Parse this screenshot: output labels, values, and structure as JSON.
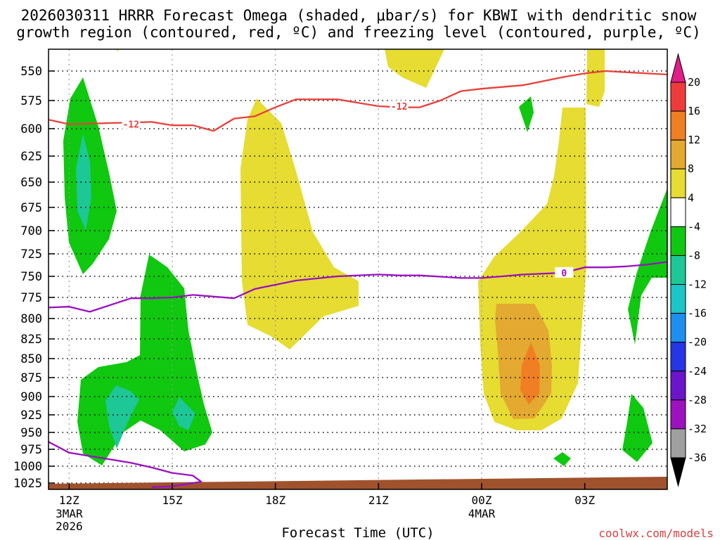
{
  "chart_data": {
    "type": "contour",
    "title_line1": "2026030311 HRRR Forecast Omega (shaded, μbar/s) for KBWI with dendritic snow",
    "title_line2": "growth region (contoured, red, ºC) and freezing level (contoured, purple, ºC)",
    "xlabel": "Forecast Time (UTC)",
    "watermark": "coolwx.com/models",
    "x_range_hours": [
      0,
      30
    ],
    "x_ticks": [
      {
        "hour": 1,
        "label": "12Z",
        "sub1": "3MAR",
        "sub2": "2026"
      },
      {
        "hour": 6,
        "label": "15Z",
        "sub1": "",
        "sub2": ""
      },
      {
        "hour": 11,
        "label": "18Z",
        "sub1": "",
        "sub2": ""
      },
      {
        "hour": 16,
        "label": "21Z",
        "sub1": "",
        "sub2": ""
      },
      {
        "hour": 21,
        "label": "00Z",
        "sub1": "4MAR",
        "sub2": ""
      },
      {
        "hour": 26,
        "label": "03Z",
        "sub1": "",
        "sub2": ""
      }
    ],
    "y_ticks_hpa": [
      "550",
      "575",
      "600",
      "625",
      "650",
      "675",
      "700",
      "725",
      "750",
      "775",
      "800",
      "825",
      "850",
      "875",
      "900",
      "925",
      "950",
      "975",
      "1000",
      "1025"
    ],
    "colorbar": {
      "labels": [
        "20",
        "16",
        "12",
        "8",
        "4",
        "-4",
        "-8",
        "-12",
        "-16",
        "-20",
        "-24",
        "-28",
        "-32",
        "-36"
      ],
      "colors": [
        "#e01f88",
        "#f03b3b",
        "#f07f24",
        "#e3a930",
        "#e6dc32",
        "#ffffff",
        "#0fc80f",
        "#1ec796",
        "#1bc6c8",
        "#1e8ff0",
        "#2436e6",
        "#6b14c9",
        "#9d12bf",
        "#a0a0a0",
        "#000000"
      ]
    },
    "contours": [
      {
        "name": "dendritic -12C",
        "label": "-12",
        "color": "#e8403a",
        "points": [
          [
            0,
            592
          ],
          [
            1,
            596
          ],
          [
            3,
            595
          ],
          [
            5,
            594
          ],
          [
            6,
            597
          ],
          [
            7,
            597
          ],
          [
            8,
            602
          ],
          [
            9,
            591
          ],
          [
            10,
            589
          ],
          [
            11,
            581
          ],
          [
            12,
            574
          ],
          [
            14,
            574
          ],
          [
            16,
            580
          ],
          [
            17,
            581
          ],
          [
            18,
            581
          ],
          [
            19,
            575
          ],
          [
            20,
            567
          ],
          [
            21,
            565
          ],
          [
            23,
            562
          ],
          [
            25,
            555
          ],
          [
            26,
            552
          ],
          [
            27,
            550
          ],
          [
            28,
            551
          ],
          [
            30,
            553
          ]
        ],
        "labels_at": [
          [
            4,
            596
          ],
          [
            17,
            580
          ]
        ]
      },
      {
        "name": "freezing level 0C",
        "label": "0",
        "color": "#9a10c0",
        "points": [
          [
            0,
            787
          ],
          [
            1,
            786
          ],
          [
            2,
            792
          ],
          [
            4,
            776
          ],
          [
            5,
            776
          ],
          [
            6,
            775
          ],
          [
            7,
            772
          ],
          [
            9,
            776
          ],
          [
            10,
            765
          ],
          [
            12,
            755
          ],
          [
            14,
            750
          ],
          [
            16,
            748
          ],
          [
            17,
            749
          ],
          [
            18,
            749
          ],
          [
            20,
            752
          ],
          [
            21,
            752
          ],
          [
            22,
            750
          ],
          [
            23,
            748
          ],
          [
            24,
            747
          ],
          [
            25,
            746
          ],
          [
            26,
            740
          ],
          [
            27,
            740
          ],
          [
            28,
            739
          ],
          [
            29,
            737
          ],
          [
            30,
            734
          ]
        ],
        "labels_at": [
          [
            25,
            746
          ]
        ]
      },
      {
        "name": "freezing level 0C surface",
        "label": "",
        "color": "#9a10c0",
        "points": [
          [
            0,
            964
          ],
          [
            1,
            980
          ],
          [
            3,
            990
          ],
          [
            4,
            995
          ],
          [
            5,
            1002
          ],
          [
            6,
            1010
          ],
          [
            7,
            1014
          ],
          [
            7.4,
            1023
          ],
          [
            6,
            1030
          ],
          [
            5,
            1031
          ]
        ],
        "labels_at": []
      }
    ]
  }
}
